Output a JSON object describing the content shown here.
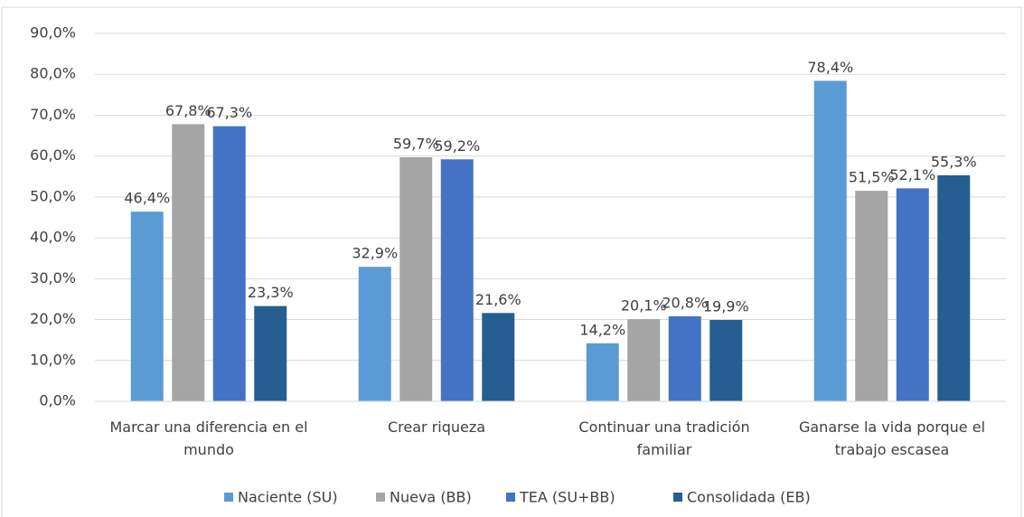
{
  "chart_data": {
    "type": "bar",
    "categories": [
      "Marcar una diferencia en el mundo",
      "Crear riqueza",
      "Continuar una tradición familiar",
      "Ganarse la vida porque el trabajo escasea"
    ],
    "series": [
      {
        "name": "Naciente (SU)",
        "color": "#5b9bd5",
        "values": [
          46.4,
          32.9,
          14.2,
          78.4
        ],
        "value_labels": [
          "46,4%",
          "32,9%",
          "14,2%",
          "78,4%"
        ]
      },
      {
        "name": "Nueva (BB)",
        "color": "#a5a5a5",
        "values": [
          67.8,
          59.7,
          20.1,
          51.5
        ],
        "value_labels": [
          "67,8%",
          "59,7%",
          "20,1%",
          "51,5%"
        ]
      },
      {
        "name": "TEA (SU+BB)",
        "color": "#4472c4",
        "values": [
          67.3,
          59.2,
          20.8,
          52.1
        ],
        "value_labels": [
          "67,3%",
          "59,2%",
          "20,8%",
          "52,1%"
        ]
      },
      {
        "name": "Consolidada (EB)",
        "color": "#255e91",
        "values": [
          23.3,
          21.6,
          19.9,
          55.3
        ],
        "value_labels": [
          "23,3%",
          "21,6%",
          "19,9%",
          "55,3%"
        ]
      }
    ],
    "ylim": [
      0,
      90
    ],
    "yticks": [
      {
        "value": 0,
        "label": "0,0%"
      },
      {
        "value": 10,
        "label": "10,0%"
      },
      {
        "value": 20,
        "label": "20,0%"
      },
      {
        "value": 30,
        "label": "30,0%"
      },
      {
        "value": 40,
        "label": "40,0%"
      },
      {
        "value": 50,
        "label": "50,0%"
      },
      {
        "value": 60,
        "label": "60,0%"
      },
      {
        "value": 70,
        "label": "70,0%"
      },
      {
        "value": 80,
        "label": "80,0%"
      },
      {
        "value": 90,
        "label": "90,0%"
      }
    ],
    "grid": true,
    "legend": "bottom"
  }
}
